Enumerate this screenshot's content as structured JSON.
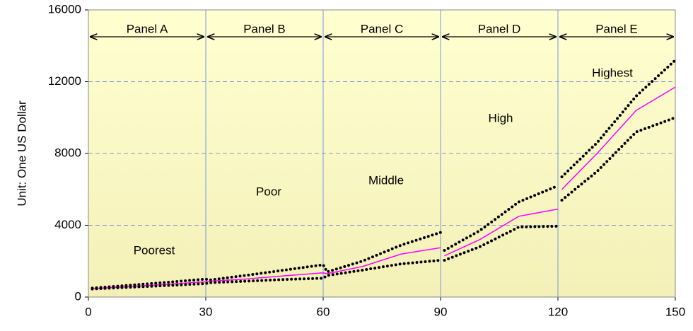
{
  "chart_data": {
    "type": "line",
    "y_label": "Unit: One US Dollar",
    "panels": [
      "Panel A",
      "Panel B",
      "Panel C",
      "Panel D",
      "Panel E"
    ],
    "groups": [
      "Poorest",
      "Poor",
      "Middle",
      "High",
      "Highest"
    ],
    "x": [
      1,
      10,
      20,
      30,
      31,
      40,
      50,
      60,
      61,
      70,
      80,
      90,
      90.5,
      91,
      100,
      110,
      120,
      120.5,
      121,
      130,
      140,
      150
    ],
    "series": [
      {
        "color": "#000000",
        "style": "dotted",
        "values": [
          500,
          650,
          820,
          1000,
          950,
          1200,
          1500,
          1800,
          1400,
          2000,
          2900,
          3600,
          null,
          2600,
          3700,
          5300,
          6200,
          null,
          6700,
          8600,
          11200,
          13200
        ]
      },
      {
        "color": "#ff00ff",
        "style": "solid",
        "values": [
          470,
          580,
          710,
          850,
          880,
          1000,
          1180,
          1350,
          1300,
          1700,
          2400,
          2750,
          null,
          2300,
          3200,
          4500,
          4900,
          null,
          6000,
          8000,
          10400,
          11700
        ]
      },
      {
        "color": "#000000",
        "style": "dotted",
        "values": [
          450,
          540,
          640,
          750,
          800,
          880,
          980,
          1050,
          1200,
          1500,
          1850,
          2050,
          null,
          2050,
          2800,
          3900,
          3950,
          null,
          5400,
          7000,
          9200,
          10000
        ]
      }
    ],
    "xlim": [
      0,
      150
    ],
    "xticks": [
      0,
      30,
      60,
      90,
      120,
      150
    ],
    "ylim": [
      0,
      16000
    ],
    "yticks": [
      0,
      4000,
      8000,
      12000,
      16000
    ],
    "grid": true
  }
}
